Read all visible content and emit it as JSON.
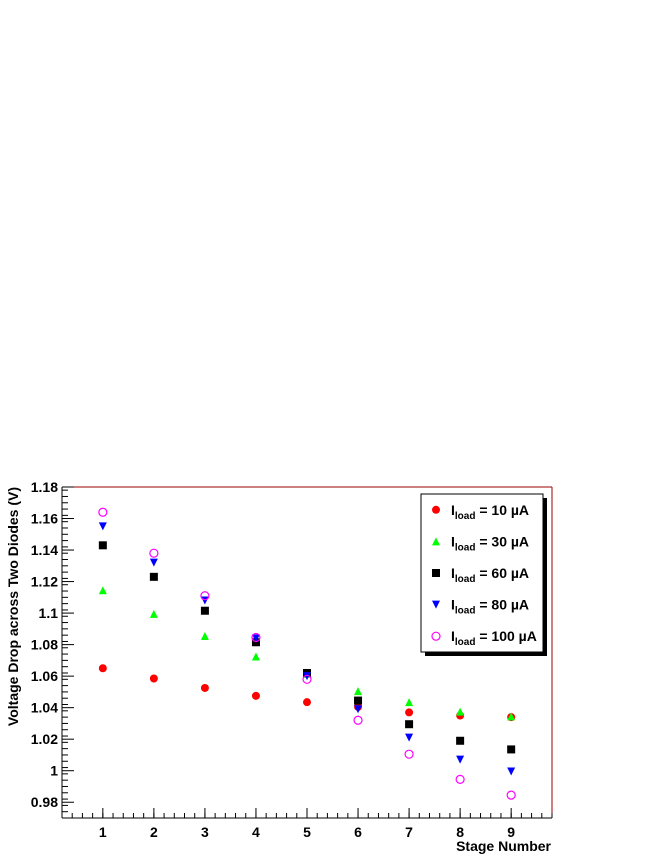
{
  "chart_data": {
    "type": "scatter",
    "xlabel": "Stage Number",
    "ylabel": "Voltage Drop across Two Diodes (V)",
    "x": [
      1,
      2,
      3,
      4,
      5,
      6,
      7,
      8,
      9
    ],
    "xlim": [
      0.2,
      9.8
    ],
    "ylim": [
      0.97,
      1.18
    ],
    "xticks": [
      "1",
      "2",
      "3",
      "4",
      "5",
      "6",
      "7",
      "8",
      "9"
    ],
    "yticks": [
      "0.98",
      "1",
      "1.02",
      "1.04",
      "1.06",
      "1.08",
      "1.1",
      "1.12",
      "1.14",
      "1.16",
      "1.18"
    ],
    "legend_position": "top-right",
    "series": [
      {
        "name": "I_load = 10 µA",
        "label_main": "I",
        "label_sub": "load",
        "label_rest": " = 10 µA",
        "marker": "circle-filled",
        "color": "#ff0000",
        "values": [
          1.065,
          1.0585,
          1.0525,
          1.0475,
          1.0435,
          1.0405,
          1.037,
          1.035,
          1.034
        ]
      },
      {
        "name": "I_load = 30 µA",
        "label_main": "I",
        "label_sub": "load",
        "label_rest": " = 30 µA",
        "marker": "triangle-up",
        "color": "#00ff00",
        "values": [
          1.1145,
          1.0995,
          1.0855,
          1.0725,
          1.0615,
          1.0505,
          1.0435,
          1.0375,
          1.0345
        ]
      },
      {
        "name": "I_load = 60 µA",
        "label_main": "I",
        "label_sub": "load",
        "label_rest": " = 60 µA",
        "marker": "square",
        "color": "#000000",
        "values": [
          1.143,
          1.123,
          1.1015,
          1.0815,
          1.062,
          1.0445,
          1.0295,
          1.019,
          1.0135
        ]
      },
      {
        "name": "I_load = 80 µA",
        "label_main": "I",
        "label_sub": "load",
        "label_rest": " = 80 µA",
        "marker": "triangle-down",
        "color": "#0000ff",
        "values": [
          1.155,
          1.132,
          1.108,
          1.084,
          1.06,
          1.039,
          1.021,
          1.007,
          0.9995
        ]
      },
      {
        "name": "I_load = 100 µA",
        "label_main": "I",
        "label_sub": "load",
        "label_rest": " = 100 µA",
        "marker": "circle-open",
        "color": "#ff00ff",
        "values": [
          1.164,
          1.138,
          1.111,
          1.0845,
          1.058,
          1.032,
          1.0105,
          0.9945,
          0.9845
        ]
      }
    ]
  }
}
